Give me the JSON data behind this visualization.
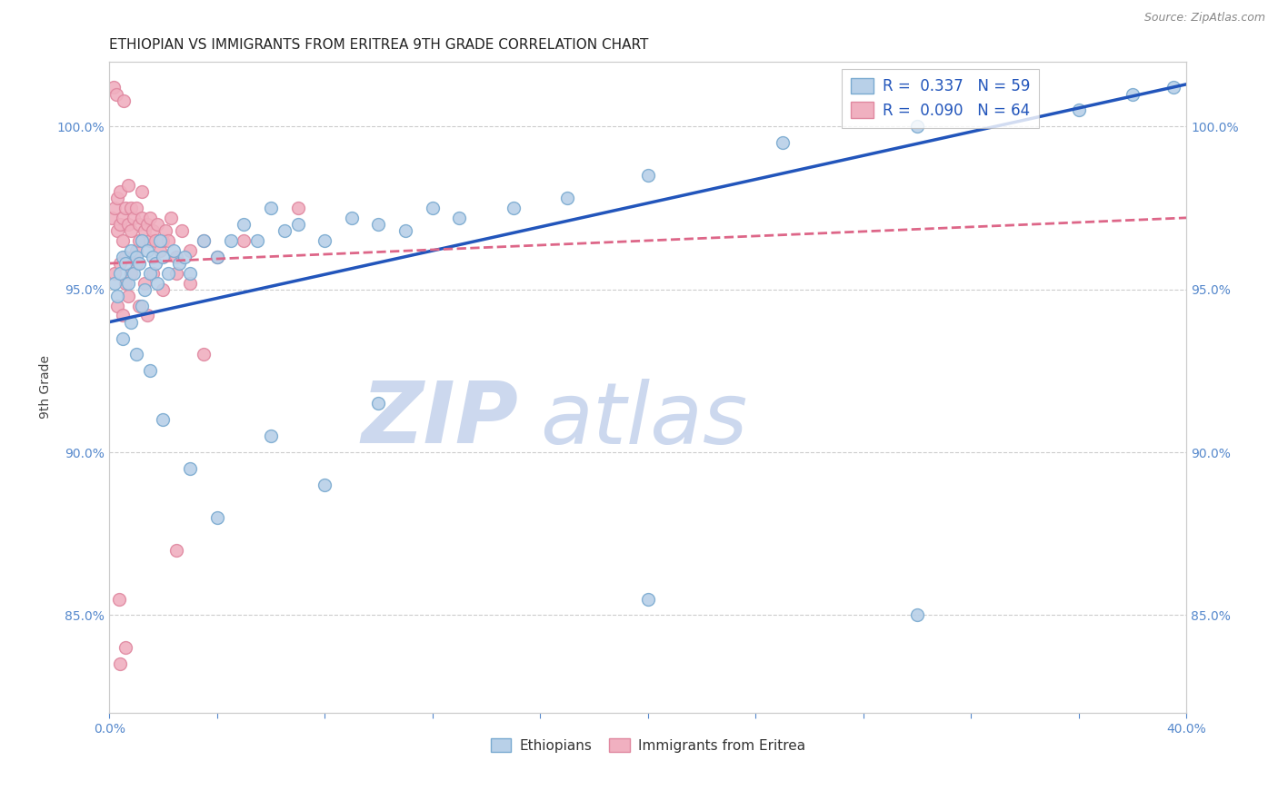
{
  "title": "ETHIOPIAN VS IMMIGRANTS FROM ERITREA 9TH GRADE CORRELATION CHART",
  "source": "Source: ZipAtlas.com",
  "ylabel": "9th Grade",
  "xlim": [
    0.0,
    40.0
  ],
  "ylim": [
    82.0,
    102.0
  ],
  "yticks": [
    85.0,
    90.0,
    95.0,
    100.0
  ],
  "ytick_labels": [
    "85.0%",
    "90.0%",
    "95.0%",
    "100.0%"
  ],
  "xticks": [
    0.0,
    4.0,
    8.0,
    12.0,
    16.0,
    20.0,
    24.0,
    28.0,
    32.0,
    36.0,
    40.0
  ],
  "blue_R": 0.337,
  "blue_N": 59,
  "pink_R": 0.09,
  "pink_N": 64,
  "blue_color": "#b8d0e8",
  "pink_color": "#f0b0c0",
  "blue_edge": "#7aaad0",
  "pink_edge": "#e088a0",
  "blue_line_color": "#2255bb",
  "pink_line_color": "#dd6688",
  "title_color": "#222222",
  "axis_color": "#5588cc",
  "legend_text_color": "#2255bb",
  "watermark_zip_color": "#ccd8ee",
  "watermark_atlas_color": "#ccd8ee",
  "background_color": "#ffffff",
  "grid_color": "#cccccc",
  "blue_line_x0": 0.0,
  "blue_line_y0": 94.0,
  "blue_line_x1": 40.0,
  "blue_line_y1": 101.3,
  "pink_line_x0": 0.0,
  "pink_line_y0": 95.8,
  "pink_line_x1": 40.0,
  "pink_line_y1": 97.2,
  "blue_scatter_x": [
    0.2,
    0.3,
    0.4,
    0.5,
    0.6,
    0.7,
    0.8,
    0.9,
    1.0,
    1.1,
    1.2,
    1.3,
    1.4,
    1.5,
    1.6,
    1.7,
    1.8,
    1.9,
    2.0,
    2.2,
    2.4,
    2.6,
    2.8,
    3.0,
    3.5,
    4.0,
    4.5,
    5.0,
    5.5,
    6.0,
    6.5,
    7.0,
    8.0,
    9.0,
    10.0,
    11.0,
    12.0,
    13.0,
    15.0,
    17.0,
    20.0,
    25.0,
    30.0,
    36.0,
    38.0,
    39.5,
    0.5,
    0.8,
    1.0,
    1.2,
    1.5,
    2.0,
    3.0,
    4.0,
    6.0,
    8.0,
    10.0,
    20.0,
    30.0
  ],
  "blue_scatter_y": [
    95.2,
    94.8,
    95.5,
    96.0,
    95.8,
    95.2,
    96.2,
    95.5,
    96.0,
    95.8,
    96.5,
    95.0,
    96.2,
    95.5,
    96.0,
    95.8,
    95.2,
    96.5,
    96.0,
    95.5,
    96.2,
    95.8,
    96.0,
    95.5,
    96.5,
    96.0,
    96.5,
    97.0,
    96.5,
    97.5,
    96.8,
    97.0,
    96.5,
    97.2,
    97.0,
    96.8,
    97.5,
    97.2,
    97.5,
    97.8,
    98.5,
    99.5,
    100.0,
    100.5,
    101.0,
    101.2,
    93.5,
    94.0,
    93.0,
    94.5,
    92.5,
    91.0,
    89.5,
    88.0,
    90.5,
    89.0,
    91.5,
    85.5,
    85.0
  ],
  "pink_scatter_x": [
    0.1,
    0.2,
    0.3,
    0.3,
    0.4,
    0.4,
    0.5,
    0.5,
    0.6,
    0.6,
    0.7,
    0.7,
    0.8,
    0.8,
    0.9,
    0.9,
    1.0,
    1.0,
    1.1,
    1.1,
    1.2,
    1.2,
    1.3,
    1.4,
    1.5,
    1.5,
    1.6,
    1.7,
    1.8,
    1.9,
    2.0,
    2.1,
    2.2,
    2.3,
    2.5,
    2.7,
    3.0,
    3.5,
    4.0,
    5.0,
    0.2,
    0.4,
    0.6,
    0.8,
    1.0,
    1.3,
    1.6,
    2.0,
    2.5,
    3.0,
    0.3,
    0.5,
    0.7,
    1.1,
    1.4,
    0.15,
    0.25,
    0.55,
    3.5,
    7.0,
    0.35,
    2.5,
    0.4,
    0.6
  ],
  "pink_scatter_y": [
    97.2,
    97.5,
    97.8,
    96.8,
    97.0,
    98.0,
    97.2,
    96.5,
    97.5,
    96.0,
    97.0,
    98.2,
    96.8,
    97.5,
    97.2,
    96.0,
    97.5,
    96.2,
    97.0,
    96.5,
    97.2,
    98.0,
    96.8,
    97.0,
    97.2,
    96.5,
    96.8,
    96.5,
    97.0,
    96.2,
    96.5,
    96.8,
    96.5,
    97.2,
    96.0,
    96.8,
    96.2,
    96.5,
    96.0,
    96.5,
    95.5,
    95.8,
    95.2,
    95.5,
    95.8,
    95.2,
    95.5,
    95.0,
    95.5,
    95.2,
    94.5,
    94.2,
    94.8,
    94.5,
    94.2,
    101.2,
    101.0,
    100.8,
    93.0,
    97.5,
    85.5,
    87.0,
    83.5,
    84.0
  ]
}
